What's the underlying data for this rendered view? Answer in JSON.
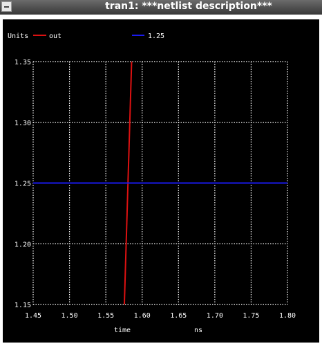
{
  "window": {
    "title": "tran1: ***netlist description***"
  },
  "colors": {
    "background": "#000000",
    "grid": "#ffffff",
    "series_out": "#dd1111",
    "series_125": "#1a1aee"
  },
  "chart_data": {
    "type": "line",
    "title": "",
    "ylabel": "Units",
    "xlabel": "time",
    "xunit": "ns",
    "xlim": [
      1.45,
      1.8
    ],
    "ylim": [
      1.15,
      1.35
    ],
    "x_ticks": [
      1.45,
      1.5,
      1.55,
      1.6,
      1.65,
      1.7,
      1.75,
      1.8
    ],
    "x_tick_labels": [
      "1.45",
      "1.50",
      "1.55",
      "1.60",
      "1.65",
      "1.70",
      "1.75",
      "1.80"
    ],
    "y_ticks": [
      1.15,
      1.2,
      1.25,
      1.3,
      1.35
    ],
    "y_tick_labels": [
      "1.15",
      "1.20",
      "1.25",
      "1.30",
      "1.35"
    ],
    "grid": true,
    "legend_position": "top",
    "series": [
      {
        "name": "out",
        "color": "#dd1111",
        "x": [
          1.5755,
          1.5855
        ],
        "y": [
          1.15,
          1.35
        ]
      },
      {
        "name": "1.25",
        "color": "#1a1aee",
        "x": [
          1.45,
          1.8
        ],
        "y": [
          1.25,
          1.25
        ]
      }
    ]
  }
}
